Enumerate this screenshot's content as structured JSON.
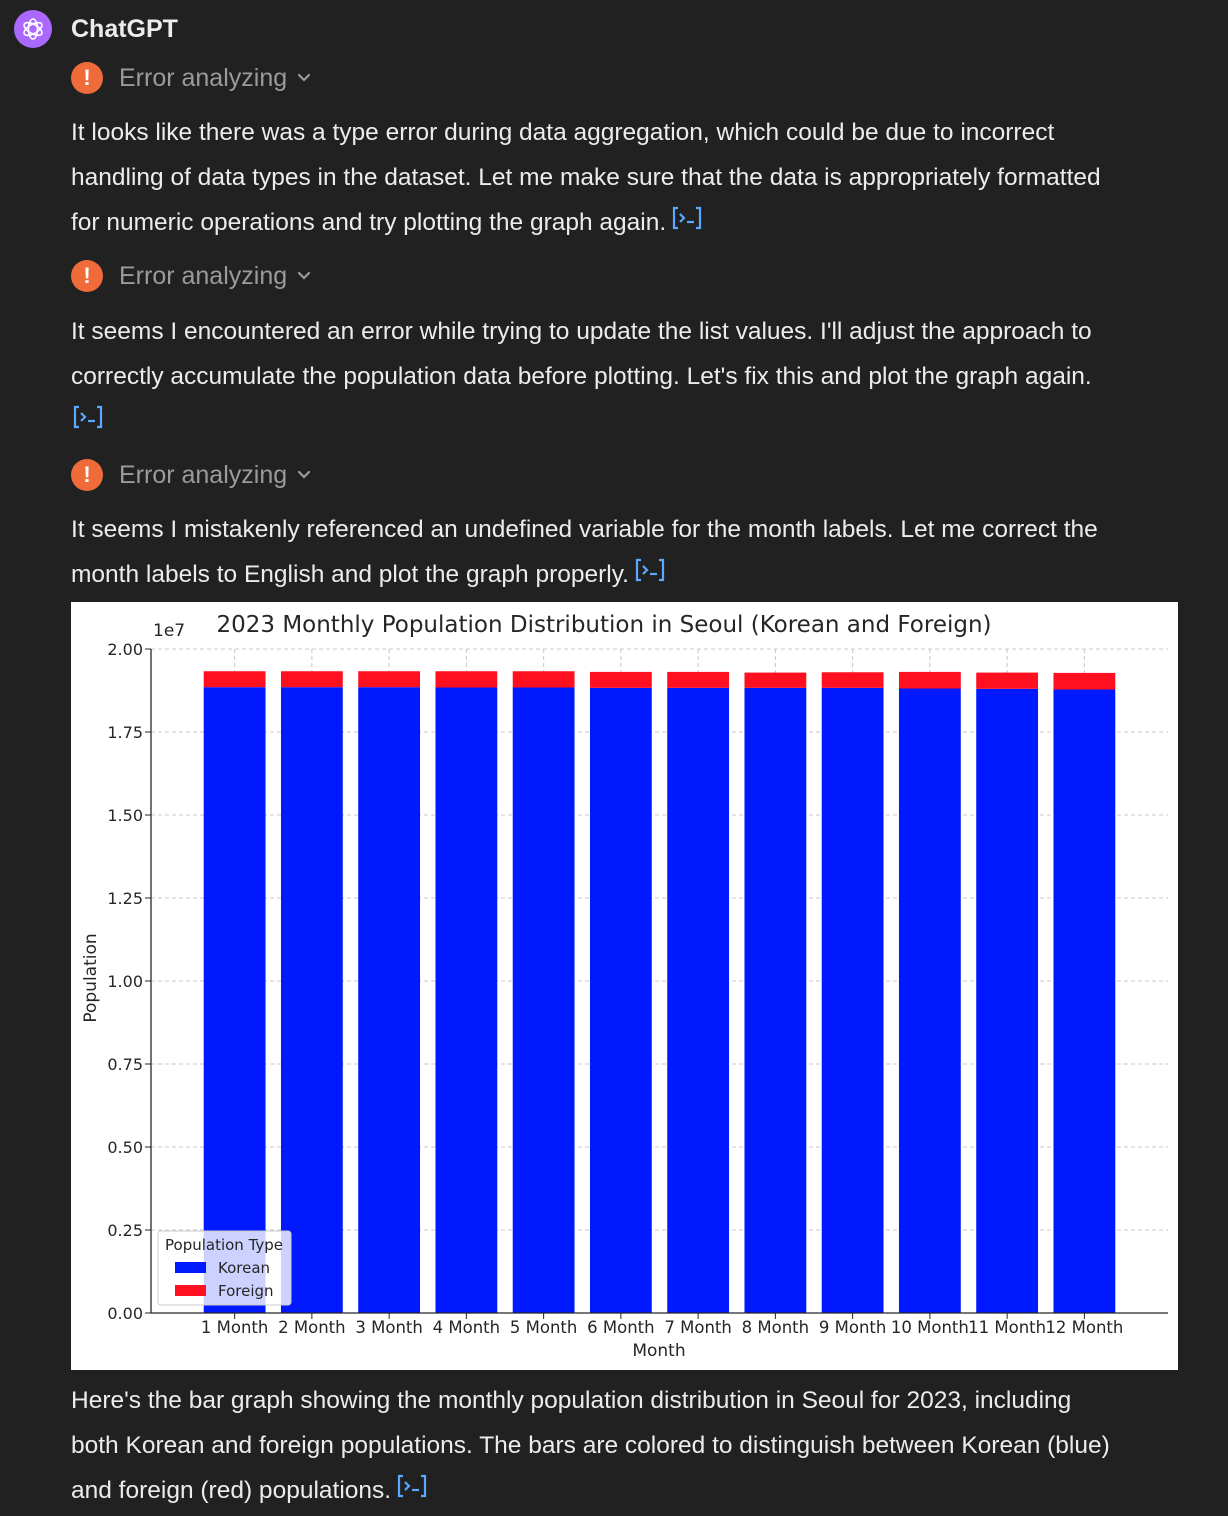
{
  "author": "ChatGPT",
  "icons": {
    "avatar": "openai-logo-icon",
    "error": "exclamation-icon",
    "expand": "chevron-down-icon",
    "code": "code-interpreter-icon"
  },
  "colors": {
    "error": "#ef6b3a",
    "avatar": "#ab68ff",
    "link": "#5aa8ff",
    "korean": "#0019ff",
    "foreign": "#ff1020"
  },
  "messages": [
    {
      "status": "Error analyzing",
      "lines": [
        "It looks like there was a type error during data aggregation, which could be due to incorrect",
        "handling of data types in the dataset. Let me make sure that the data is appropriately formatted",
        "for numeric operations and try plotting the graph again."
      ]
    },
    {
      "status": "Error analyzing",
      "lines": [
        "It seems I encountered an error while trying to update the list values. I'll adjust the approach to",
        "correctly accumulate the population data before plotting. Let's fix this and plot the graph again."
      ]
    },
    {
      "status": "Error analyzing",
      "lines": [
        "It seems I mistakenly referenced an undefined variable for the month labels. Let me correct the",
        "month labels to English and plot the graph properly."
      ]
    }
  ],
  "final": {
    "lines": [
      "Here's the bar graph showing the monthly population distribution in Seoul for 2023, including",
      "both Korean and foreign populations. The bars are colored to distinguish between Korean (blue)",
      "and foreign (red) populations."
    ]
  },
  "chart_data": {
    "type": "bar",
    "stacked": true,
    "title": "2023 Monthly Population Distribution in Seoul (Korean and Foreign)",
    "xlabel": "Month",
    "ylabel": "Population",
    "offset_label": "1e7",
    "ylim": [
      0,
      2.0
    ],
    "yticks": [
      "0.00",
      "0.25",
      "0.50",
      "0.75",
      "1.00",
      "1.25",
      "1.50",
      "1.75",
      "2.00"
    ],
    "categories": [
      "1 Month",
      "2 Month",
      "3 Month",
      "4 Month",
      "5 Month",
      "6 Month",
      "7 Month",
      "8 Month",
      "9 Month",
      "10 Month",
      "11 Month",
      "12 Month"
    ],
    "series": [
      {
        "name": "Korean",
        "color": "#0019ff",
        "values": [
          1.885,
          1.885,
          1.885,
          1.884,
          1.884,
          1.883,
          1.883,
          1.883,
          1.883,
          1.881,
          1.88,
          1.878
        ]
      },
      {
        "name": "Foreign",
        "color": "#ff1020",
        "values": [
          0.048,
          0.048,
          0.048,
          0.049,
          0.049,
          0.048,
          0.048,
          0.046,
          0.047,
          0.05,
          0.049,
          0.05
        ]
      }
    ],
    "legend": {
      "title": "Population Type",
      "position": "lower-left"
    },
    "grid": true
  }
}
